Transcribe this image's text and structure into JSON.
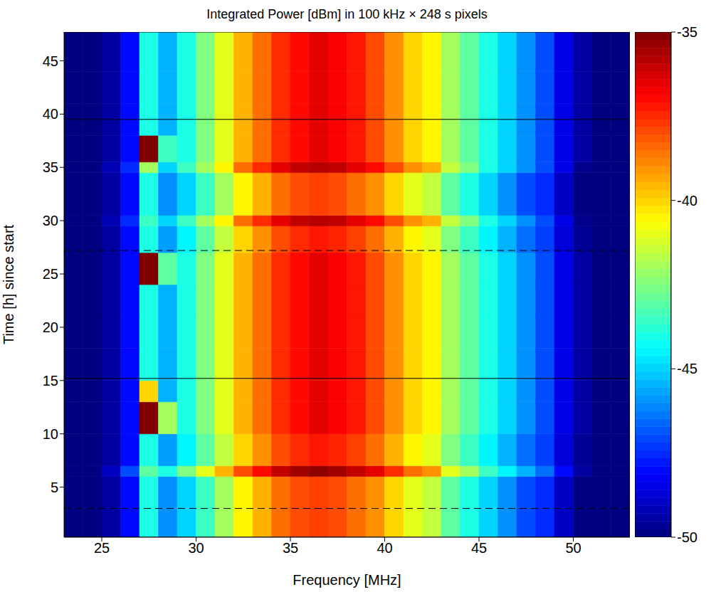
{
  "chart_data": {
    "type": "heatmap",
    "title": "Integrated Power [dBm] in 100 kHz × 248 s pixels",
    "x_label": "Frequency [MHz]",
    "y_label": "Time [h] since start",
    "xlim": [
      23,
      53
    ],
    "ylim": [
      0.3,
      47.7
    ],
    "xticks": [
      25,
      30,
      35,
      40,
      45,
      50
    ],
    "yticks": [
      5,
      10,
      15,
      20,
      25,
      30,
      35,
      40,
      45
    ],
    "x_edges": [
      23,
      24,
      25,
      26,
      27,
      28,
      29,
      30,
      31,
      32,
      33,
      34,
      35,
      36,
      37,
      38,
      39,
      40,
      41,
      42,
      43,
      44,
      45,
      46,
      47,
      48,
      49,
      50,
      51,
      52,
      53
    ],
    "y_edges": [
      0.3,
      3,
      6,
      7,
      10,
      13,
      15,
      18,
      21,
      24,
      27,
      29.5,
      30.5,
      34.5,
      35.5,
      38,
      41,
      44,
      47.7
    ],
    "cells": [
      [
        -50,
        -50,
        -49.5,
        -48,
        -44,
        -46,
        -45,
        -43.5,
        -42,
        -40.5,
        -39.5,
        -38.5,
        -38,
        -37.8,
        -38,
        -38.5,
        -39,
        -40,
        -41,
        -41.5,
        -43,
        -44,
        -45,
        -46,
        -47,
        -47.5,
        -49,
        -50,
        -50,
        -50
      ],
      [
        -50,
        -50,
        -49.5,
        -48,
        -44,
        -46,
        -45,
        -43.5,
        -42,
        -40.5,
        -39.5,
        -38.5,
        -38,
        -37.8,
        -38,
        -38.5,
        -39,
        -40,
        -41,
        -41.5,
        -43,
        -44,
        -45,
        -46,
        -47,
        -47.5,
        -49,
        -50,
        -50,
        -50
      ],
      [
        -50,
        -50,
        -49,
        -47,
        -43,
        -44,
        -42.5,
        -41,
        -39.5,
        -38,
        -37,
        -36,
        -35.5,
        -35.2,
        -35.5,
        -36,
        -36.5,
        -37.5,
        -38.5,
        -39,
        -41,
        -42,
        -43.5,
        -44.5,
        -45.5,
        -46.5,
        -48,
        -49.5,
        -50,
        -50
      ],
      [
        -50,
        -50,
        -49.5,
        -48,
        -44,
        -45.8,
        -44.5,
        -43,
        -41.5,
        -40,
        -39,
        -38,
        -37.5,
        -37.2,
        -37.4,
        -37.8,
        -38.5,
        -39.5,
        -40.5,
        -41,
        -42.5,
        -43.5,
        -44.5,
        -45.5,
        -46.5,
        -47.2,
        -48.7,
        -49.7,
        -50,
        -50
      ],
      [
        -50,
        -50,
        -49.5,
        -48,
        -35,
        -42,
        -44,
        -42.5,
        -41,
        -39.5,
        -38.5,
        -37.5,
        -37,
        -36.5,
        -36.8,
        -37.2,
        -38,
        -39,
        -40,
        -40.5,
        -42,
        -43,
        -44,
        -45,
        -46,
        -47,
        -48.5,
        -49.5,
        -50,
        -50
      ],
      [
        -50,
        -50,
        -49.5,
        -48,
        -40,
        -45.5,
        -44,
        -42.5,
        -41,
        -39.5,
        -38.5,
        -37.5,
        -37,
        -36.5,
        -36.8,
        -37.2,
        -38,
        -39,
        -40,
        -40.5,
        -42,
        -43,
        -44,
        -45,
        -46,
        -47,
        -48.5,
        -49.5,
        -50,
        -50
      ],
      [
        -50,
        -50,
        -49.5,
        -48,
        -44,
        -45.5,
        -44,
        -42.5,
        -41,
        -39.5,
        -38.5,
        -37.5,
        -37,
        -36.5,
        -36.8,
        -37.2,
        -38,
        -39,
        -40,
        -40.5,
        -42,
        -43,
        -44,
        -45,
        -46,
        -47,
        -48.5,
        -49.5,
        -50,
        -50
      ],
      [
        -50,
        -50,
        -49.5,
        -48,
        -44,
        -45.5,
        -44,
        -42.5,
        -41,
        -39.5,
        -38.5,
        -37.5,
        -37,
        -36.5,
        -36.8,
        -37.2,
        -38,
        -39,
        -40,
        -40.5,
        -42,
        -43,
        -44,
        -45,
        -46,
        -47,
        -48.5,
        -49.5,
        -50,
        -50
      ],
      [
        -50,
        -50,
        -49.5,
        -48,
        -44,
        -45.5,
        -44,
        -42.5,
        -41,
        -39.5,
        -38.5,
        -37.5,
        -37,
        -36.5,
        -36.8,
        -37.2,
        -38,
        -39,
        -40,
        -40.5,
        -42,
        -43,
        -44,
        -45,
        -46,
        -47,
        -48.5,
        -49.5,
        -50,
        -50
      ],
      [
        -50,
        -50,
        -49.5,
        -48,
        -35,
        -43,
        -44,
        -42.5,
        -41,
        -39.5,
        -38.5,
        -37.5,
        -37,
        -36.5,
        -36.8,
        -37.2,
        -38,
        -39,
        -40,
        -40.5,
        -42,
        -43,
        -44,
        -45,
        -46,
        -47,
        -48.5,
        -49.5,
        -50,
        -50
      ],
      [
        -50,
        -50,
        -49.5,
        -48,
        -44,
        -45.8,
        -44.5,
        -43,
        -41.5,
        -40,
        -39,
        -38,
        -37.5,
        -37.2,
        -37.4,
        -37.8,
        -38.5,
        -39.5,
        -40.5,
        -41,
        -42.5,
        -43.5,
        -44.5,
        -45.5,
        -46.5,
        -47.2,
        -48.7,
        -49.7,
        -50,
        -50
      ],
      [
        -50,
        -50,
        -49.2,
        -47.5,
        -43.5,
        -45,
        -43.5,
        -42,
        -40.5,
        -38.5,
        -37.5,
        -36.5,
        -36,
        -35.8,
        -36,
        -36.5,
        -37,
        -38,
        -39,
        -39.5,
        -41.5,
        -42.5,
        -44,
        -45,
        -46,
        -47,
        -48.5,
        -49.8,
        -50,
        -50
      ],
      [
        -50,
        -50,
        -49.5,
        -48,
        -44,
        -46,
        -45,
        -43.5,
        -42,
        -40.5,
        -39.5,
        -38.5,
        -38,
        -37.8,
        -38,
        -38.5,
        -39,
        -40,
        -41,
        -41.5,
        -43,
        -44,
        -45,
        -46,
        -47,
        -47.5,
        -49,
        -50,
        -50,
        -50
      ],
      [
        -50,
        -50,
        -49.2,
        -47.5,
        -42,
        -45,
        -43.5,
        -42,
        -40.5,
        -38.5,
        -37.5,
        -36.5,
        -36,
        -35.8,
        -36,
        -36.5,
        -37,
        -38,
        -39,
        -39.5,
        -41.5,
        -42.5,
        -44,
        -45,
        -46,
        -47,
        -48.5,
        -49.8,
        -50,
        -50
      ],
      [
        -50,
        -50,
        -49.5,
        -48,
        -35,
        -43.5,
        -44,
        -42.5,
        -41,
        -39.5,
        -38.5,
        -37.5,
        -37,
        -36.5,
        -36.8,
        -37.2,
        -38,
        -39,
        -40,
        -40.5,
        -42,
        -43,
        -44,
        -45,
        -46,
        -47,
        -48.5,
        -49.5,
        -50,
        -50
      ],
      [
        -50,
        -50,
        -49.5,
        -48,
        -44,
        -45.5,
        -44,
        -42.5,
        -41,
        -39.5,
        -38.5,
        -37.5,
        -37,
        -36.5,
        -36.8,
        -37.2,
        -38,
        -39,
        -40,
        -40.5,
        -42,
        -43,
        -44,
        -45,
        -46,
        -47,
        -48.5,
        -49.5,
        -50,
        -50
      ],
      [
        -50,
        -50,
        -49.5,
        -48,
        -44,
        -45.5,
        -44,
        -42.5,
        -41,
        -39.5,
        -38.5,
        -37.5,
        -37,
        -36.5,
        -36.8,
        -37.2,
        -38,
        -39,
        -40,
        -40.5,
        -42,
        -43,
        -44,
        -45,
        -46,
        -47,
        -48.5,
        -49.5,
        -50,
        -50
      ],
      [
        -50,
        -50,
        -49.5,
        -48,
        -44,
        -45.5,
        -44,
        -42.5,
        -41,
        -39.5,
        -38.5,
        -37.5,
        -37,
        -36.5,
        -36.8,
        -37.2,
        -38,
        -39,
        -40,
        -40.5,
        -42,
        -43,
        -44,
        -45,
        -46,
        -47,
        -48.5,
        -49.5,
        -50,
        -50
      ]
    ],
    "colorbar_range": [
      -50,
      -35
    ],
    "colorbar_ticks": [
      -35,
      -40,
      -45,
      -50
    ],
    "solid_lines": [
      15.2,
      39.5
    ],
    "dashed_lines": [
      3,
      27.2
    ]
  }
}
